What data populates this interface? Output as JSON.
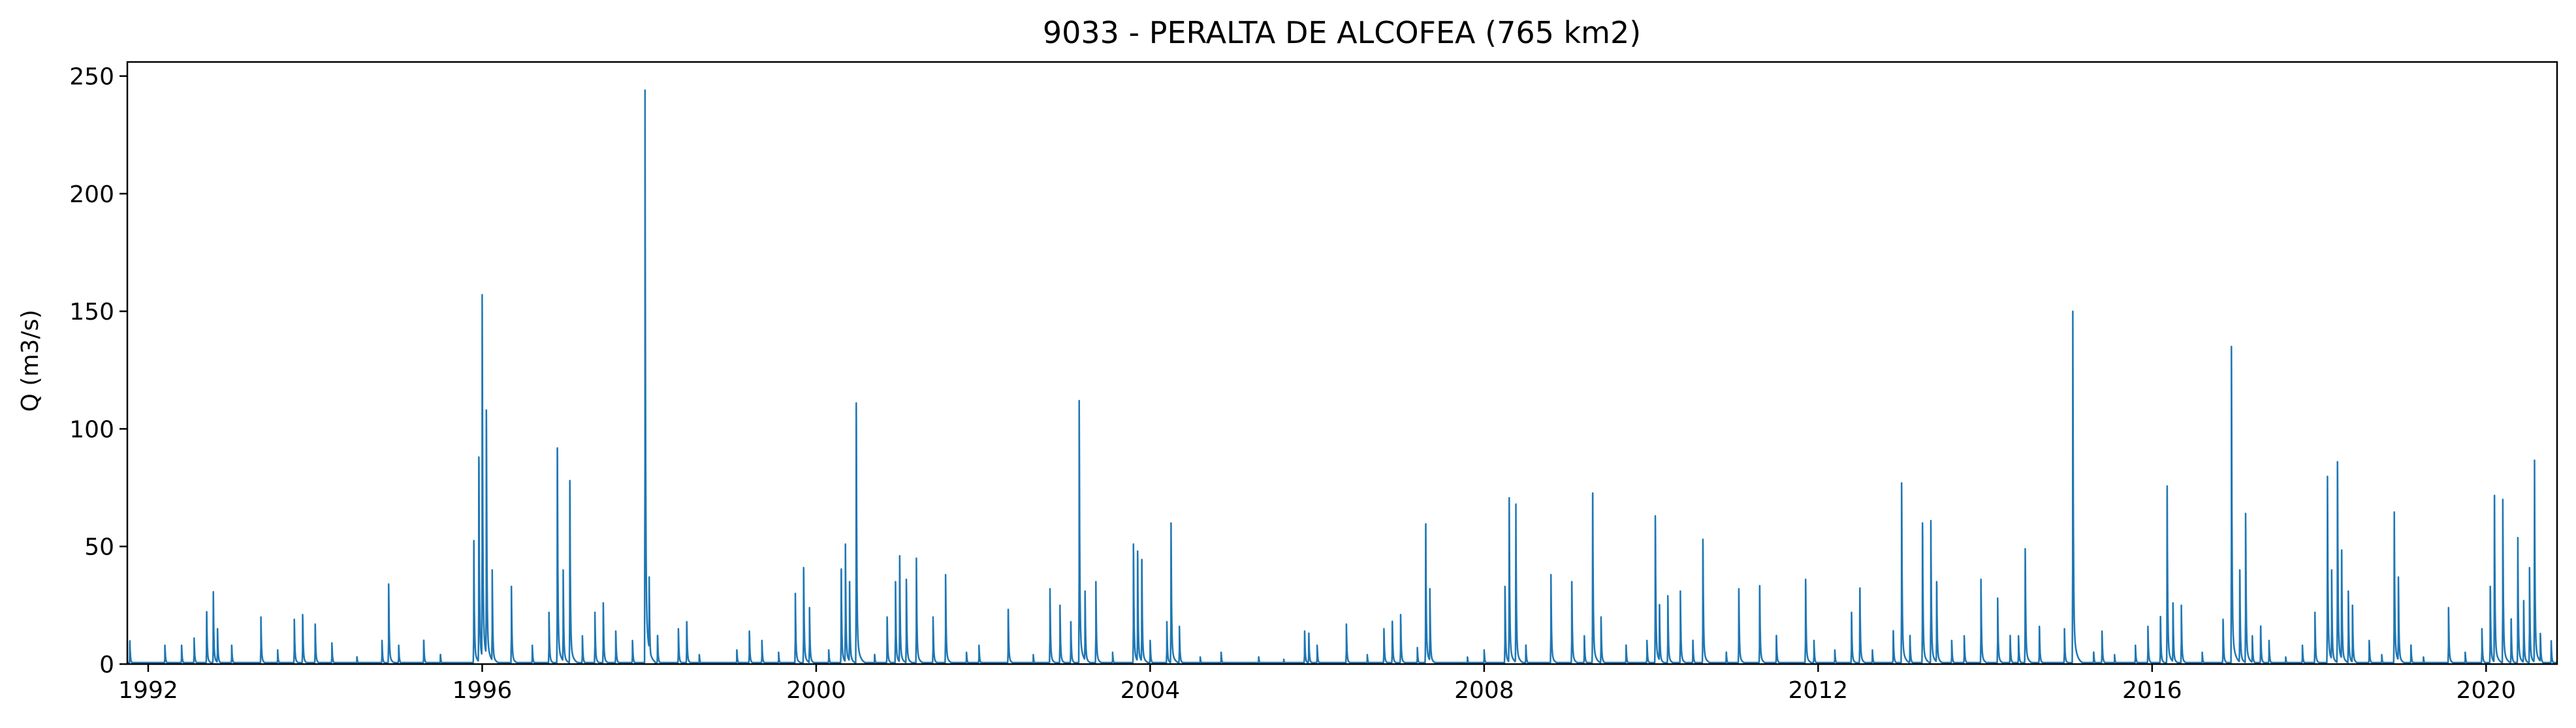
{
  "chart_data": {
    "type": "line",
    "title": "9033 - PERALTA DE ALCOFEA (765 km2)",
    "xlabel": "",
    "ylabel": "Q (m3/s)",
    "xlim": [
      1991.75,
      2020.85
    ],
    "ylim": [
      0,
      256
    ],
    "xticks": [
      1992,
      1996,
      2000,
      2004,
      2008,
      2012,
      2016,
      2020
    ],
    "xtick_labels": [
      "1992",
      "1996",
      "2000",
      "2004",
      "2008",
      "2012",
      "2016",
      "2020"
    ],
    "yticks": [
      0,
      50,
      100,
      150,
      200,
      250
    ],
    "ytick_labels": [
      "0",
      "50",
      "100",
      "150",
      "200",
      "250"
    ],
    "grid": false,
    "legend": "none",
    "color": "#1f77b4",
    "series": [
      {
        "baseflow": 0.6,
        "peaks": [
          [
            1991.78,
            9
          ],
          [
            1992.2,
            8
          ],
          [
            1992.4,
            8
          ],
          [
            1992.55,
            11
          ],
          [
            1992.7,
            22
          ],
          [
            1992.78,
            28
          ],
          [
            1992.83,
            15
          ],
          [
            1993.0,
            8
          ],
          [
            1993.35,
            20
          ],
          [
            1993.55,
            6
          ],
          [
            1993.75,
            19
          ],
          [
            1993.85,
            21
          ],
          [
            1994.0,
            17
          ],
          [
            1994.2,
            9
          ],
          [
            1994.5,
            3
          ],
          [
            1994.8,
            10
          ],
          [
            1994.88,
            34
          ],
          [
            1995.0,
            8
          ],
          [
            1995.3,
            10
          ],
          [
            1995.5,
            4
          ],
          [
            1995.9,
            52
          ],
          [
            1995.96,
            88
          ],
          [
            1996.0,
            157
          ],
          [
            1996.05,
            108
          ],
          [
            1996.12,
            40
          ],
          [
            1996.35,
            33
          ],
          [
            1996.6,
            8
          ],
          [
            1996.8,
            22
          ],
          [
            1996.9,
            91
          ],
          [
            1996.97,
            40
          ],
          [
            1997.05,
            78
          ],
          [
            1997.2,
            12
          ],
          [
            1997.35,
            22
          ],
          [
            1997.45,
            26
          ],
          [
            1997.6,
            14
          ],
          [
            1997.8,
            10
          ],
          [
            1997.95,
            244
          ],
          [
            1998.0,
            37
          ],
          [
            1998.1,
            12
          ],
          [
            1998.35,
            15
          ],
          [
            1998.45,
            18
          ],
          [
            1998.6,
            4
          ],
          [
            1999.05,
            6
          ],
          [
            1999.2,
            14
          ],
          [
            1999.35,
            10
          ],
          [
            1999.55,
            5
          ],
          [
            1999.75,
            30
          ],
          [
            1999.85,
            41
          ],
          [
            1999.92,
            24
          ],
          [
            2000.15,
            6
          ],
          [
            2000.3,
            40
          ],
          [
            2000.35,
            51
          ],
          [
            2000.4,
            35
          ],
          [
            2000.48,
            111
          ],
          [
            2000.7,
            4
          ],
          [
            2000.85,
            20
          ],
          [
            2000.95,
            35
          ],
          [
            2001.0,
            46
          ],
          [
            2001.08,
            36
          ],
          [
            2001.2,
            45
          ],
          [
            2001.4,
            20
          ],
          [
            2001.55,
            38
          ],
          [
            2001.8,
            5
          ],
          [
            2001.95,
            8
          ],
          [
            2002.3,
            23
          ],
          [
            2002.6,
            4
          ],
          [
            2002.8,
            32
          ],
          [
            2002.92,
            25
          ],
          [
            2003.05,
            18
          ],
          [
            2003.15,
            112
          ],
          [
            2003.22,
            31
          ],
          [
            2003.35,
            35
          ],
          [
            2003.55,
            5
          ],
          [
            2003.8,
            51
          ],
          [
            2003.85,
            48
          ],
          [
            2003.9,
            44
          ],
          [
            2004.0,
            10
          ],
          [
            2004.2,
            18
          ],
          [
            2004.25,
            60
          ],
          [
            2004.35,
            16
          ],
          [
            2004.6,
            3
          ],
          [
            2004.85,
            5
          ],
          [
            2005.3,
            3
          ],
          [
            2005.6,
            2
          ],
          [
            2005.85,
            14
          ],
          [
            2005.9,
            13
          ],
          [
            2006.0,
            8
          ],
          [
            2006.35,
            17
          ],
          [
            2006.6,
            4
          ],
          [
            2006.8,
            15
          ],
          [
            2006.9,
            18
          ],
          [
            2007.0,
            21
          ],
          [
            2007.2,
            7
          ],
          [
            2007.3,
            59
          ],
          [
            2007.35,
            32
          ],
          [
            2007.8,
            3
          ],
          [
            2008.0,
            6
          ],
          [
            2008.25,
            33
          ],
          [
            2008.3,
            70
          ],
          [
            2008.38,
            62
          ],
          [
            2008.5,
            8
          ],
          [
            2008.8,
            38
          ],
          [
            2009.05,
            35
          ],
          [
            2009.2,
            12
          ],
          [
            2009.3,
            72
          ],
          [
            2009.4,
            20
          ],
          [
            2009.7,
            8
          ],
          [
            2009.95,
            10
          ],
          [
            2010.05,
            63
          ],
          [
            2010.1,
            25
          ],
          [
            2010.2,
            29
          ],
          [
            2010.35,
            31
          ],
          [
            2010.5,
            10
          ],
          [
            2010.62,
            53
          ],
          [
            2010.9,
            5
          ],
          [
            2011.05,
            32
          ],
          [
            2011.3,
            33
          ],
          [
            2011.5,
            12
          ],
          [
            2011.85,
            36
          ],
          [
            2011.95,
            10
          ],
          [
            2012.2,
            6
          ],
          [
            2012.4,
            22
          ],
          [
            2012.5,
            32
          ],
          [
            2012.65,
            6
          ],
          [
            2012.9,
            14
          ],
          [
            2013.0,
            77
          ],
          [
            2013.1,
            12
          ],
          [
            2013.25,
            60
          ],
          [
            2013.35,
            61
          ],
          [
            2013.42,
            35
          ],
          [
            2013.6,
            10
          ],
          [
            2013.75,
            12
          ],
          [
            2013.95,
            36
          ],
          [
            2014.15,
            28
          ],
          [
            2014.3,
            12
          ],
          [
            2014.4,
            12
          ],
          [
            2014.48,
            49
          ],
          [
            2014.65,
            16
          ],
          [
            2014.95,
            15
          ],
          [
            2015.05,
            150
          ],
          [
            2015.3,
            5
          ],
          [
            2015.4,
            14
          ],
          [
            2015.55,
            4
          ],
          [
            2015.8,
            8
          ],
          [
            2015.95,
            16
          ],
          [
            2016.1,
            20
          ],
          [
            2016.18,
            69
          ],
          [
            2016.25,
            26
          ],
          [
            2016.35,
            25
          ],
          [
            2016.6,
            5
          ],
          [
            2016.85,
            19
          ],
          [
            2016.95,
            135
          ],
          [
            2017.05,
            40
          ],
          [
            2017.12,
            64
          ],
          [
            2017.2,
            12
          ],
          [
            2017.3,
            16
          ],
          [
            2017.4,
            10
          ],
          [
            2017.6,
            3
          ],
          [
            2017.8,
            8
          ],
          [
            2017.95,
            22
          ],
          [
            2018.1,
            79
          ],
          [
            2018.15,
            40
          ],
          [
            2018.22,
            86
          ],
          [
            2018.27,
            47
          ],
          [
            2018.35,
            31
          ],
          [
            2018.4,
            25
          ],
          [
            2018.6,
            10
          ],
          [
            2018.75,
            4
          ],
          [
            2018.9,
            64
          ],
          [
            2018.95,
            37
          ],
          [
            2019.1,
            8
          ],
          [
            2019.25,
            3
          ],
          [
            2019.55,
            24
          ],
          [
            2019.75,
            5
          ],
          [
            2019.95,
            15
          ],
          [
            2020.05,
            33
          ],
          [
            2020.1,
            71
          ],
          [
            2020.2,
            70
          ],
          [
            2020.3,
            19
          ],
          [
            2020.38,
            49
          ],
          [
            2020.45,
            27
          ],
          [
            2020.52,
            41
          ],
          [
            2020.58,
            79
          ],
          [
            2020.65,
            13
          ],
          [
            2020.78,
            9
          ]
        ]
      }
    ]
  }
}
